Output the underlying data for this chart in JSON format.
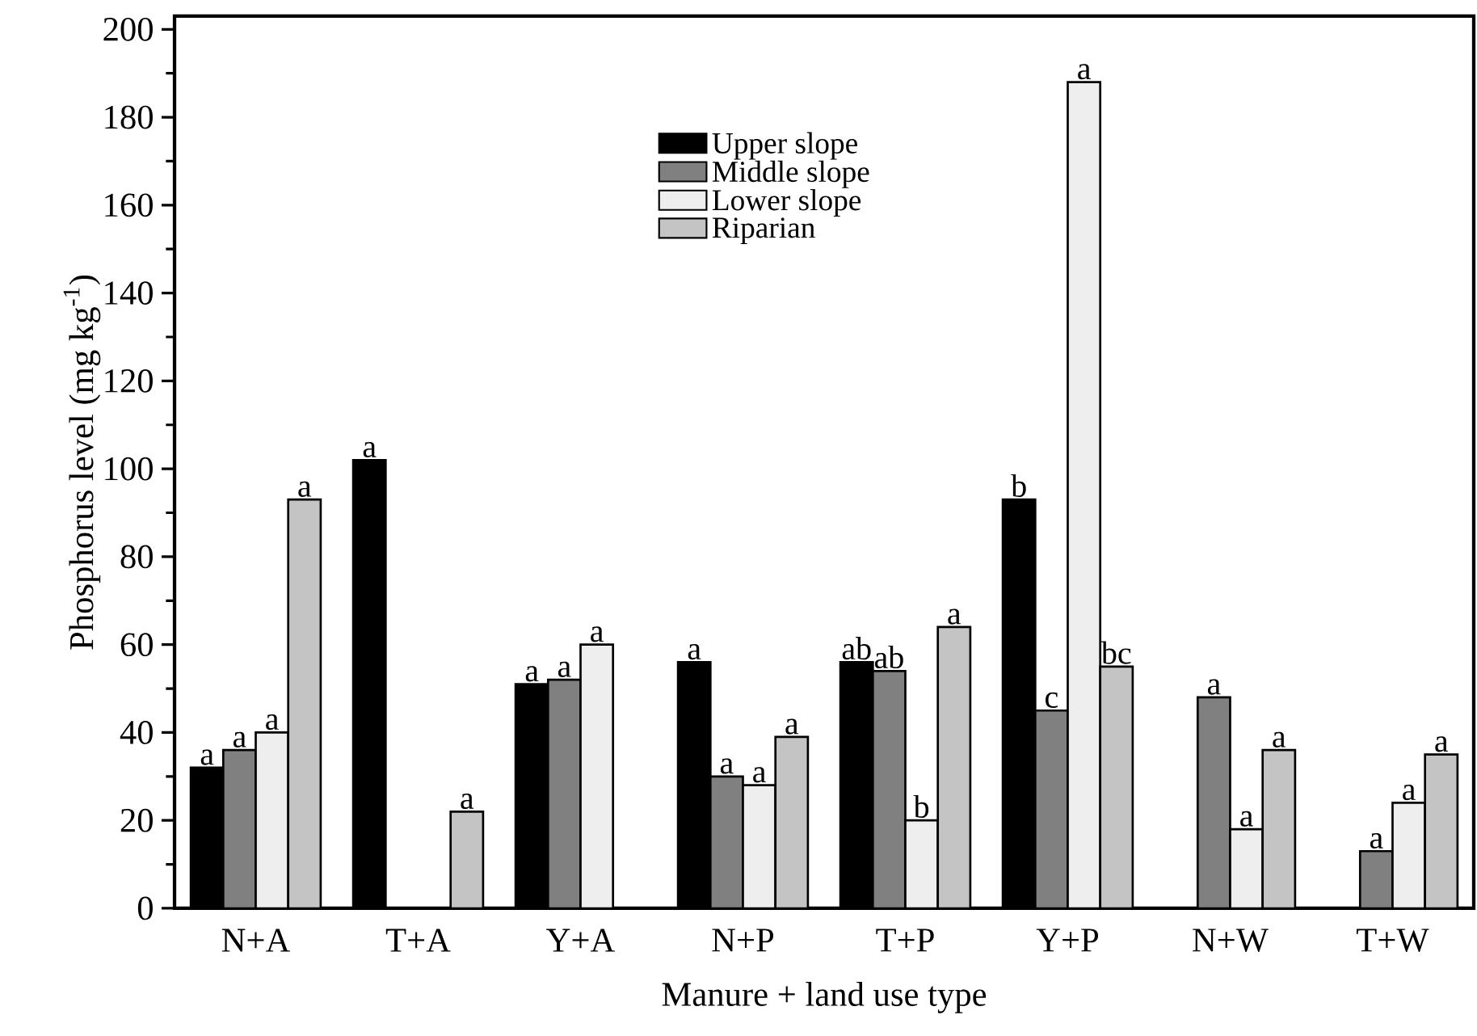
{
  "chart_data": {
    "type": "bar",
    "xlabel": "Manure + land use type",
    "ylabel": "Phosphorus level (mg kg$^{-1}$)",
    "categories": [
      "N+A",
      "T+A",
      "Y+A",
      "N+P",
      "T+P",
      "Y+P",
      "N+W",
      "T+W"
    ],
    "series": [
      {
        "name": "Upper slope",
        "color": "#000000",
        "values": [
          32,
          102,
          51,
          56,
          56,
          93,
          null,
          null
        ],
        "value_labels": [
          "a",
          "a",
          "a",
          "a",
          "ab",
          "b",
          null,
          null
        ]
      },
      {
        "name": "Middle slope",
        "color": "#808080",
        "values": [
          36,
          null,
          52,
          30,
          54,
          45,
          48,
          13
        ],
        "value_labels": [
          "a",
          null,
          "a",
          "a",
          "ab",
          "c",
          "a",
          "a"
        ]
      },
      {
        "name": "Lower slope",
        "color": "#eeeeee",
        "values": [
          40,
          null,
          60,
          28,
          20,
          188,
          18,
          24
        ],
        "value_labels": [
          "a",
          null,
          "a",
          "a",
          "b",
          "a",
          "a",
          "a"
        ]
      },
      {
        "name": "Riparian",
        "color": "#c4c4c4",
        "values": [
          93,
          22,
          null,
          39,
          64,
          55,
          36,
          35
        ],
        "value_labels": [
          "a",
          "a",
          null,
          "a",
          "a",
          "bc",
          "a",
          "a"
        ]
      }
    ],
    "ylim": [
      0,
      203
    ],
    "yticks": [
      0,
      20,
      40,
      60,
      80,
      100,
      120,
      140,
      160,
      180,
      200
    ],
    "legend": "top"
  }
}
